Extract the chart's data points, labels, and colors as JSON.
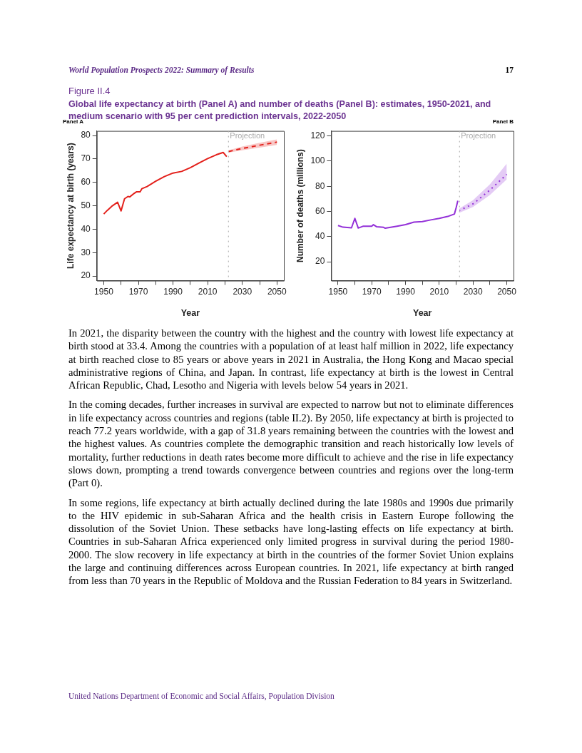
{
  "chart_data": [
    {
      "type": "other",
      "title": "Global life expectancy at birth (Panel A) and number of deaths (Panel B): estimates, 1950-2021, and medium scenario with 95 per cent prediction intervals, 2022-2050",
      "annotations": [
        "World Population Prospects 2022: Summary of Results",
        "17",
        "Figure II.4"
      ]
    },
    {
      "type": "line",
      "title": "Panel A",
      "xlabel": "Year",
      "ylabel": "Life expectancy at birth (years)",
      "xlim": [
        1946,
        2054
      ],
      "ylim": [
        18,
        82
      ],
      "xticks": [
        1950,
        {
          "value": 1960,
          "label": null
        },
        1970,
        {
          "value": 1980,
          "label": null
        },
        1990,
        {
          "value": 2000,
          "label": null
        },
        2010,
        {
          "value": 2020,
          "label": null
        },
        2030,
        {
          "value": 2040,
          "label": null
        },
        2050
      ],
      "yticks": [
        20,
        30,
        40,
        50,
        60,
        70,
        80
      ],
      "grid": false,
      "legend": false,
      "marker": "none",
      "ref_lines": [
        {
          "axis": "x",
          "value": 2022,
          "label": "Projection",
          "color": "#aaaaaa",
          "line_style": "dotted"
        }
      ],
      "series": [
        {
          "color": "#e3201b",
          "line_style": "solid",
          "x": [
            1950,
            1952,
            1955,
            1958,
            1960,
            1962,
            1964,
            1965,
            1967,
            1969,
            1971,
            1972,
            1975,
            1980,
            1985,
            1990,
            1995,
            2000,
            2005,
            2010,
            2015,
            2019,
            2021
          ],
          "values": [
            46.5,
            48,
            50,
            51.5,
            47.8,
            53,
            54,
            53.8,
            55,
            56,
            56,
            57.3,
            58.2,
            60.5,
            62.5,
            64,
            64.7,
            66.3,
            68.3,
            70.2,
            71.8,
            72.8,
            71
          ]
        },
        {
          "color": "#e3201b",
          "line_style": "dashed",
          "x": [
            2022,
            2030,
            2040,
            2050
          ],
          "values": [
            73.2,
            74.5,
            75.9,
            77.2
          ],
          "lower": [
            72.7,
            73.7,
            74.9,
            76
          ],
          "upper": [
            73.7,
            75.3,
            76.9,
            78.4
          ]
        }
      ]
    },
    {
      "type": "line",
      "title": "Panel B",
      "xlabel": "Year",
      "ylabel": "Number of deaths (millions)",
      "xlim": [
        1946,
        2054
      ],
      "ylim": [
        5,
        124
      ],
      "xticks": [
        1950,
        {
          "value": 1960,
          "label": null
        },
        1970,
        {
          "value": 1980,
          "label": null
        },
        1990,
        {
          "value": 2000,
          "label": null
        },
        2010,
        {
          "value": 2020,
          "label": null
        },
        2030,
        {
          "value": 2040,
          "label": null
        },
        2050
      ],
      "yticks": [
        20,
        40,
        60,
        80,
        100,
        120
      ],
      "grid": false,
      "legend": false,
      "marker": "none",
      "ref_lines": [
        {
          "axis": "x",
          "value": 2022,
          "label": "Projection",
          "color": "#aaaaaa",
          "line_style": "dotted"
        }
      ],
      "series": [
        {
          "color": "#9330d8",
          "line_style": "solid",
          "x": [
            1950,
            1953,
            1958,
            1960,
            1962,
            1965,
            1970,
            1971,
            1973,
            1977,
            1978,
            1985,
            1990,
            1995,
            2000,
            2005,
            2010,
            2015,
            2019,
            2020,
            2021
          ],
          "values": [
            48.8,
            47.5,
            47,
            54.5,
            46.8,
            48.3,
            48.3,
            49.5,
            47.8,
            47.4,
            46.7,
            48.3,
            49.5,
            51.5,
            52,
            53.3,
            54.5,
            56,
            58,
            63,
            68.5
          ]
        },
        {
          "color": "#9330d8",
          "line_style": "dotted",
          "x": [
            2022,
            2030,
            2040,
            2050
          ],
          "values": [
            60.8,
            66,
            77,
            89.5
          ],
          "lower": [
            59,
            63.5,
            73,
            85.5
          ],
          "upper": [
            62.5,
            69,
            81.5,
            98
          ]
        }
      ]
    },
    {
      "type": "other",
      "annotations": [
        "In 2021, the disparity between the country with the highest and the country with lowest life expectancy at birth stood at 33.4. Among the countries with a population of at least half million in 2022, life expectancy at birth reached close to 85 years or above years in 2021 in Australia, the Hong Kong and Macao special administrative regions of China, and Japan. In contrast, life expectancy at birth is the lowest in Central African Republic, Chad, Lesotho and Nigeria with levels below 54 years in 2021.",
        "In the coming decades, further increases in survival are expected to narrow but not to eliminate differences in life expectancy across countries and regions (table II.2). By 2050, life expectancy at birth is projected to reach 77.2 years worldwide, with a gap of 31.8 years remaining between the countries with the lowest and the highest values. As countries complete the demographic transition and reach historically low levels of mortality, further reductions in death rates become more difficult to achieve and the rise in life expectancy slows down, prompting a trend towards convergence between countries and regions over the long-term (Part 0).",
        "In some regions, life expectancy at birth actually declined during the late 1980s and 1990s due primarily to the HIV epidemic in sub-Saharan Africa and the health crisis in Eastern Europe following the dissolution of the Soviet Union. These setbacks have long-lasting effects on life expectancy at birth. Countries in sub-Saharan Africa experienced only limited progress in survival during the period 1980-2000. The slow recovery in life expectancy at birth in the countries of the former Soviet Union explains the large and continuing differences across European countries. In 2021, life expectancy at birth ranged from less than 70 years in the Republic of Moldova and the Russian Federation to 84 years in Switzerland.",
        "United Nations Department of Economic and Social Affairs, Population Division"
      ]
    }
  ]
}
